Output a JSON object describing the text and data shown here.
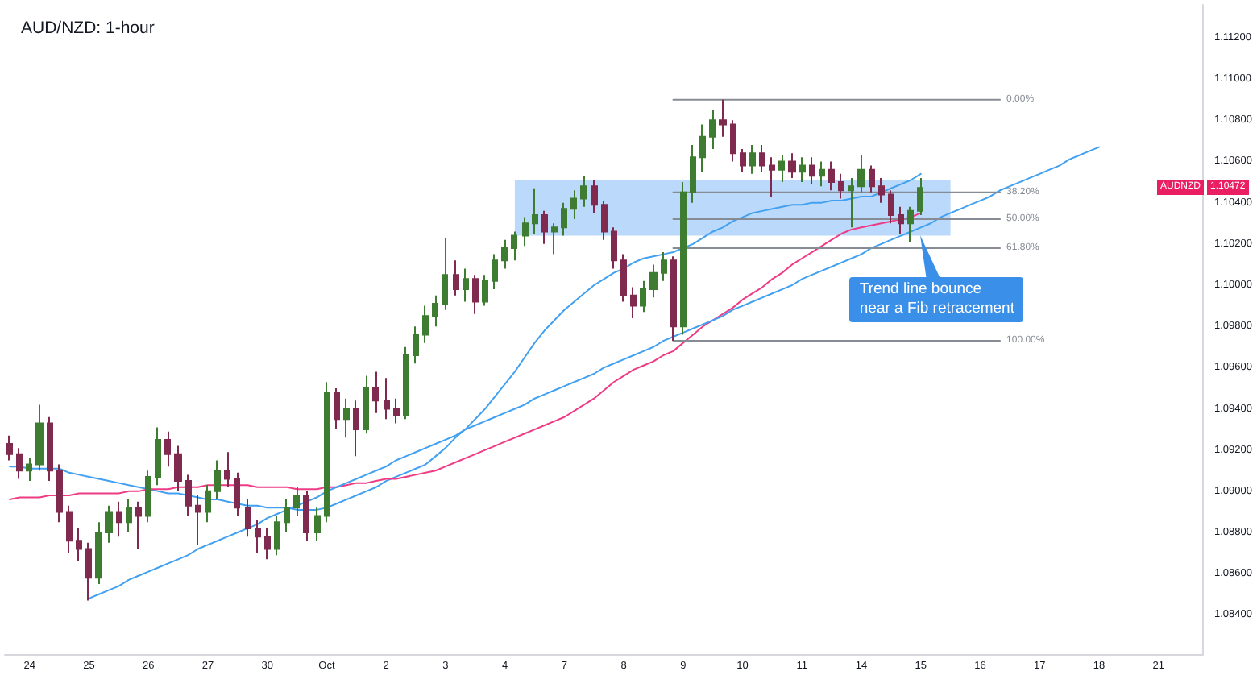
{
  "chart_data": {
    "type": "candlestick",
    "title": "AUD/NZD: 1-hour",
    "categories": [
      null,
      null,
      "24",
      null,
      null,
      null,
      null,
      null,
      "25",
      null,
      null,
      null,
      null,
      null,
      "26",
      null,
      null,
      null,
      null,
      null,
      "27",
      null,
      null,
      null,
      null,
      null,
      "30",
      null,
      null,
      null,
      null,
      null,
      "Oct",
      null,
      null,
      null,
      null,
      null,
      "2",
      null,
      null,
      null,
      null,
      null,
      "3",
      null,
      null,
      null,
      null,
      null,
      "4",
      null,
      null,
      null,
      null,
      null,
      "7",
      null,
      null,
      null,
      null,
      null,
      "8",
      null,
      null,
      null,
      null,
      null,
      "9",
      null,
      null,
      null,
      null,
      null,
      "10",
      null,
      null,
      null,
      null,
      null,
      "11",
      null,
      null,
      null,
      null,
      null,
      "14",
      null,
      null,
      null,
      null,
      null,
      "15",
      null,
      null,
      null,
      null,
      null,
      "16",
      null,
      null,
      null,
      null,
      null,
      "17",
      null,
      null,
      null,
      null,
      null,
      "18",
      null,
      null,
      null,
      null,
      null,
      "21",
      null,
      null,
      null,
      null
    ],
    "ohlc": [
      [
        1.0923,
        1.0927,
        1.0915,
        1.0918
      ],
      [
        1.0918,
        1.0921,
        1.0906,
        1.091
      ],
      [
        1.091,
        1.0916,
        1.0905,
        1.0913
      ],
      [
        1.0913,
        1.0942,
        1.091,
        1.0933
      ],
      [
        1.0933,
        1.0936,
        1.0905,
        1.091
      ],
      [
        1.091,
        1.0913,
        1.0885,
        1.089
      ],
      [
        1.089,
        1.0893,
        1.087,
        1.0876
      ],
      [
        1.0876,
        1.0882,
        1.0866,
        1.0872
      ],
      [
        1.0872,
        1.0875,
        1.0847,
        1.0858
      ],
      [
        1.0858,
        1.0885,
        1.0855,
        1.088
      ],
      [
        1.088,
        1.0893,
        1.0875,
        1.089
      ],
      [
        1.089,
        1.0895,
        1.0878,
        1.0885
      ],
      [
        1.0885,
        1.0896,
        1.088,
        1.0892
      ],
      [
        1.0892,
        1.0895,
        1.0872,
        1.0888
      ],
      [
        1.0888,
        1.091,
        1.0885,
        1.0907
      ],
      [
        1.0907,
        1.0931,
        1.0903,
        1.0925
      ],
      [
        1.0925,
        1.0929,
        1.0912,
        1.0918
      ],
      [
        1.0918,
        1.0922,
        1.09,
        1.0905
      ],
      [
        1.0905,
        1.0908,
        1.0888,
        1.0893
      ],
      [
        1.0893,
        1.0898,
        1.0874,
        1.089
      ],
      [
        1.089,
        1.0903,
        1.0885,
        1.09
      ],
      [
        1.09,
        1.0915,
        1.0896,
        1.091
      ],
      [
        1.091,
        1.0919,
        1.0902,
        1.0906
      ],
      [
        1.0906,
        1.0909,
        1.0888,
        1.0892
      ],
      [
        1.0892,
        1.0896,
        1.0878,
        1.0882
      ],
      [
        1.0882,
        1.0886,
        1.087,
        1.0878
      ],
      [
        1.0878,
        1.0882,
        1.0867,
        1.0872
      ],
      [
        1.0872,
        1.0888,
        1.0869,
        1.0885
      ],
      [
        1.0885,
        1.0896,
        1.088,
        1.0892
      ],
      [
        1.0892,
        1.0902,
        1.0888,
        1.0898
      ],
      [
        1.0898,
        1.09,
        1.0876,
        1.088
      ],
      [
        1.088,
        1.0892,
        1.0876,
        1.0888
      ],
      [
        1.0888,
        1.0953,
        1.0885,
        1.0948
      ],
      [
        1.0948,
        1.095,
        1.093,
        1.0935
      ],
      [
        1.0935,
        1.0945,
        1.0926,
        1.094
      ],
      [
        1.094,
        1.0944,
        1.0917,
        1.093
      ],
      [
        1.093,
        1.0956,
        1.0928,
        1.095
      ],
      [
        1.095,
        1.0958,
        1.0938,
        1.0944
      ],
      [
        1.0944,
        1.0955,
        1.0935,
        1.094
      ],
      [
        1.094,
        1.0945,
        1.0933,
        1.0937
      ],
      [
        1.0937,
        1.097,
        1.0935,
        1.0966
      ],
      [
        1.0966,
        1.098,
        1.0962,
        1.0976
      ],
      [
        1.0976,
        1.099,
        1.0972,
        1.0985
      ],
      [
        1.0985,
        1.0995,
        1.098,
        1.0991
      ],
      [
        1.0991,
        1.1023,
        1.0988,
        1.1005
      ],
      [
        1.1005,
        1.1012,
        1.0995,
        1.0998
      ],
      [
        1.0998,
        1.1008,
        1.0992,
        1.1003
      ],
      [
        1.1003,
        1.1005,
        1.0986,
        1.0992
      ],
      [
        1.0992,
        1.1005,
        1.099,
        1.1002
      ],
      [
        1.1002,
        1.1015,
        1.0998,
        1.1012
      ],
      [
        1.1012,
        1.1022,
        1.1008,
        1.1018
      ],
      [
        1.1018,
        1.1026,
        1.1012,
        1.1024
      ],
      [
        1.1024,
        1.1033,
        1.1019,
        1.103
      ],
      [
        1.103,
        1.1047,
        1.1025,
        1.1034
      ],
      [
        1.1034,
        1.1036,
        1.102,
        1.1026
      ],
      [
        1.1026,
        1.103,
        1.1015,
        1.1028
      ],
      [
        1.1028,
        1.104,
        1.1024,
        1.1037
      ],
      [
        1.1037,
        1.1046,
        1.1032,
        1.1042
      ],
      [
        1.1042,
        1.1053,
        1.1038,
        1.1048
      ],
      [
        1.1048,
        1.1051,
        1.1035,
        1.1039
      ],
      [
        1.1039,
        1.1041,
        1.1022,
        1.1026
      ],
      [
        1.1026,
        1.1028,
        1.1008,
        1.1012
      ],
      [
        1.1012,
        1.1015,
        1.0992,
        1.0995
      ],
      [
        1.0995,
        1.0999,
        1.0984,
        1.099
      ],
      [
        1.099,
        1.1002,
        1.0987,
        1.0998
      ],
      [
        1.0998,
        1.101,
        1.0994,
        1.1006
      ],
      [
        1.1006,
        1.1016,
        1.1002,
        1.1012
      ],
      [
        1.1012,
        1.1014,
        1.0973,
        1.098
      ],
      [
        1.098,
        1.105,
        1.0976,
        1.1045
      ],
      [
        1.1045,
        1.1068,
        1.104,
        1.1062
      ],
      [
        1.1062,
        1.1078,
        1.1055,
        1.1072
      ],
      [
        1.1072,
        1.1085,
        1.1066,
        1.108
      ],
      [
        1.108,
        1.109,
        1.1072,
        1.1078
      ],
      [
        1.1078,
        1.108,
        1.106,
        1.1064
      ],
      [
        1.1064,
        1.1066,
        1.1055,
        1.1058
      ],
      [
        1.1058,
        1.1068,
        1.1054,
        1.1064
      ],
      [
        1.1064,
        1.1068,
        1.1055,
        1.1058
      ],
      [
        1.1058,
        1.1062,
        1.1043,
        1.1056
      ],
      [
        1.1056,
        1.1063,
        1.105,
        1.106
      ],
      [
        1.106,
        1.1064,
        1.1052,
        1.1055
      ],
      [
        1.1055,
        1.1062,
        1.105,
        1.1058
      ],
      [
        1.1058,
        1.1062,
        1.1049,
        1.1053
      ],
      [
        1.1053,
        1.106,
        1.1048,
        1.1056
      ],
      [
        1.1056,
        1.106,
        1.1046,
        1.105
      ],
      [
        1.105,
        1.1054,
        1.1042,
        1.1046
      ],
      [
        1.1046,
        1.1052,
        1.1028,
        1.1048
      ],
      [
        1.1048,
        1.1063,
        1.1045,
        1.1056
      ],
      [
        1.1056,
        1.1058,
        1.1045,
        1.1048
      ],
      [
        1.1048,
        1.1052,
        1.104,
        1.1044
      ],
      [
        1.1044,
        1.1046,
        1.103,
        1.1034
      ],
      [
        1.1034,
        1.1038,
        1.1025,
        1.103
      ],
      [
        1.103,
        1.1038,
        1.1021,
        1.1036
      ],
      [
        1.1036,
        1.1052,
        1.1034,
        1.10472
      ],
      null,
      null,
      null,
      null,
      null,
      null,
      null,
      null,
      null,
      null,
      null,
      null,
      null,
      null,
      null,
      null,
      null,
      null,
      null,
      null,
      null,
      null,
      null,
      null,
      null,
      null,
      null,
      null
    ],
    "colors": [
      "#7f2a4e",
      "#7f2a4e",
      "#3e7c32",
      "#3e7c32",
      "#7f2a4e",
      "#7f2a4e",
      "#7f2a4e",
      "#7f2a4e",
      "#7f2a4e",
      "#3e7c32",
      "#3e7c32",
      "#7f2a4e",
      "#3e7c32",
      "#7f2a4e",
      "#3e7c32",
      "#3e7c32",
      "#7f2a4e",
      "#7f2a4e",
      "#7f2a4e",
      "#7f2a4e",
      "#3e7c32",
      "#3e7c32",
      "#7f2a4e",
      "#7f2a4e",
      "#7f2a4e",
      "#7f2a4e",
      "#7f2a4e",
      "#3e7c32",
      "#3e7c32",
      "#3e7c32",
      "#7f2a4e",
      "#3e7c32",
      "#3e7c32",
      "#7f2a4e",
      "#3e7c32",
      "#7f2a4e",
      "#3e7c32",
      "#7f2a4e",
      "#7f2a4e",
      "#7f2a4e",
      "#3e7c32",
      "#3e7c32",
      "#3e7c32",
      "#3e7c32",
      "#3e7c32",
      "#7f2a4e",
      "#3e7c32",
      "#7f2a4e",
      "#3e7c32",
      "#3e7c32",
      "#3e7c32",
      "#3e7c32",
      "#3e7c32",
      "#3e7c32",
      "#7f2a4e",
      "#3e7c32",
      "#3e7c32",
      "#3e7c32",
      "#3e7c32",
      "#7f2a4e",
      "#7f2a4e",
      "#7f2a4e",
      "#7f2a4e",
      "#7f2a4e",
      "#3e7c32",
      "#3e7c32",
      "#3e7c32",
      "#7f2a4e",
      "#3e7c32",
      "#3e7c32",
      "#3e7c32",
      "#3e7c32",
      "#7f2a4e",
      "#7f2a4e",
      "#7f2a4e",
      "#3e7c32",
      "#7f2a4e",
      "#7f2a4e",
      "#3e7c32",
      "#7f2a4e",
      "#3e7c32",
      "#7f2a4e",
      "#3e7c32",
      "#7f2a4e",
      "#7f2a4e",
      "#3e7c32",
      "#3e7c32",
      "#7f2a4e",
      "#7f2a4e",
      "#7f2a4e",
      "#7f2a4e",
      "#3e7c32",
      "#3e7c32",
      null,
      null,
      null,
      null,
      null,
      null,
      null,
      null,
      null,
      null,
      null,
      null,
      null,
      null,
      null,
      null,
      null,
      null,
      null,
      null,
      null,
      null,
      null,
      null,
      null,
      null,
      null,
      null
    ],
    "series": [
      {
        "type": "line",
        "color": "#bbd9fa",
        "values": [
          null,
          null,
          null,
          null,
          null,
          null,
          null,
          null,
          null,
          null,
          null,
          null,
          null,
          null,
          null,
          null,
          null,
          null,
          null,
          null,
          null,
          null,
          null,
          null,
          null,
          null,
          null,
          null,
          null,
          null,
          null,
          null,
          null,
          null,
          null,
          null,
          null,
          null,
          null,
          null,
          null,
          null,
          null,
          null,
          null,
          null,
          null,
          null,
          null,
          null,
          null,
          null,
          null,
          null,
          null,
          null,
          null,
          null,
          null,
          null,
          null,
          null,
          null,
          null,
          null,
          null,
          null,
          null,
          null,
          null,
          null,
          null,
          null,
          null,
          null,
          null,
          null,
          null,
          null,
          null,
          null,
          null,
          null,
          null,
          null,
          null,
          null,
          null,
          null,
          null,
          null,
          null,
          null,
          null,
          null,
          null,
          null,
          null,
          null,
          null,
          null,
          null,
          null,
          null,
          null,
          null,
          null,
          null,
          null,
          null,
          null,
          null,
          null,
          null,
          null,
          null,
          null,
          null,
          null,
          null,
          null
        ],
        "upper": [
          null,
          null,
          null,
          null,
          null,
          null,
          null,
          null,
          null,
          null,
          null,
          null,
          null,
          null,
          null,
          null,
          null,
          null,
          null,
          null,
          null,
          null,
          null,
          null,
          null,
          null,
          null,
          null,
          null,
          null,
          null,
          null,
          null,
          null,
          null,
          null,
          null,
          null,
          null,
          null,
          null,
          null,
          null,
          null,
          null,
          null,
          null,
          null,
          null,
          null,
          null,
          1.1051,
          1.1051,
          1.1051,
          1.1051,
          1.1051,
          1.1051,
          1.1051,
          1.1051,
          1.1051,
          1.1051,
          1.1051,
          1.1051,
          1.1051,
          1.1051,
          1.1051,
          1.1051,
          1.1051,
          1.1051,
          1.1051,
          1.1051,
          1.1051,
          1.1051,
          1.1051,
          1.1051,
          1.1051,
          1.1051,
          1.1051,
          1.1051,
          1.1051,
          1.1051,
          1.1051,
          1.1051,
          1.1051,
          1.1051,
          1.1051,
          1.1051,
          1.1051,
          1.1051,
          1.1051,
          1.1051,
          1.1051,
          1.1051,
          1.1051,
          1.1051,
          1.1051,
          null,
          null,
          null,
          null,
          null,
          null,
          null,
          null,
          null,
          null,
          null,
          null,
          null,
          null,
          null,
          null,
          null,
          null,
          null,
          null,
          null,
          null,
          null,
          null,
          null
        ],
        "lower": [
          null,
          null,
          null,
          null,
          null,
          null,
          null,
          null,
          null,
          null,
          null,
          null,
          null,
          null,
          null,
          null,
          null,
          null,
          null,
          null,
          null,
          null,
          null,
          null,
          null,
          null,
          null,
          null,
          null,
          null,
          null,
          null,
          null,
          null,
          null,
          null,
          null,
          null,
          null,
          null,
          null,
          null,
          null,
          null,
          null,
          null,
          null,
          null,
          null,
          null,
          null,
          1.1024,
          1.1024,
          1.1024,
          1.1024,
          1.1024,
          1.1024,
          1.1024,
          1.1024,
          1.1024,
          1.1024,
          1.1024,
          1.1024,
          1.1024,
          1.1024,
          1.1024,
          1.1024,
          1.1024,
          1.1024,
          1.1024,
          1.1024,
          1.1024,
          1.1024,
          1.1024,
          1.1024,
          1.1024,
          1.1024,
          1.1024,
          1.1024,
          1.1024,
          1.1024,
          1.1024,
          1.1024,
          1.1024,
          1.1024,
          1.1024,
          1.1024,
          1.1024,
          1.1024,
          1.1024,
          1.1024,
          1.1024,
          1.1024,
          1.1024,
          1.1024,
          1.1024,
          null,
          null,
          null,
          null,
          null,
          null,
          null,
          null,
          null,
          null,
          null,
          null,
          null,
          null,
          null,
          null,
          null,
          null,
          null,
          null,
          null,
          null,
          null,
          null,
          null
        ]
      },
      {
        "type": "line",
        "color": "#42a0f0",
        "values": [
          1.0912,
          1.0912,
          1.0911,
          1.0911,
          1.0911,
          1.0911,
          1.0909,
          1.0908,
          1.0907,
          1.0906,
          1.0905,
          1.0904,
          1.0903,
          1.0902,
          1.0901,
          1.09,
          1.0899,
          1.0899,
          1.0898,
          1.0897,
          1.0896,
          1.0896,
          1.0895,
          1.0894,
          1.0893,
          1.0893,
          1.0892,
          1.0892,
          1.0892,
          1.0891,
          1.0891,
          1.0891,
          1.0892,
          1.0894,
          1.0896,
          1.0898,
          1.09,
          1.0902,
          1.0905,
          1.0907,
          1.0909,
          1.0911,
          1.0913,
          1.0917,
          1.0921,
          1.0926,
          1.093,
          1.0935,
          1.094,
          1.0946,
          1.0952,
          1.0958,
          1.0965,
          1.0972,
          1.0978,
          1.0983,
          1.0988,
          1.0992,
          1.0996,
          1.1,
          1.1003,
          1.1006,
          1.1008,
          1.1011,
          1.1013,
          1.1014,
          1.1015,
          1.1016,
          1.1018,
          1.102,
          1.1023,
          1.1026,
          1.1028,
          1.1031,
          1.1033,
          1.1035,
          1.1036,
          1.1037,
          1.1038,
          1.1039,
          1.1039,
          1.104,
          1.104,
          1.1041,
          1.1041,
          1.1042,
          1.1043,
          1.1043,
          1.1045,
          1.1047,
          1.1049,
          1.1051,
          1.1054,
          null,
          null,
          null,
          null,
          null,
          null,
          null,
          null,
          null,
          null,
          null,
          null,
          null,
          null,
          null,
          null,
          null,
          null,
          null,
          null,
          null,
          null,
          null,
          null,
          null,
          null,
          null,
          null
        ]
      },
      {
        "type": "line",
        "color": "#ee3b84",
        "values": [
          1.0896,
          1.0897,
          1.0897,
          1.0897,
          1.0898,
          1.0898,
          1.0898,
          1.0899,
          1.0899,
          1.0899,
          1.0899,
          1.0899,
          1.09,
          1.09,
          1.0901,
          1.0901,
          1.0901,
          1.0902,
          1.0902,
          1.0902,
          1.0903,
          1.0903,
          1.0903,
          1.0903,
          1.0903,
          1.0902,
          1.0902,
          1.0902,
          1.0902,
          1.0901,
          1.0901,
          1.0901,
          1.0902,
          1.0902,
          1.0903,
          1.0904,
          1.0904,
          1.0905,
          1.0906,
          1.0906,
          1.0907,
          1.0908,
          1.0909,
          1.091,
          1.0912,
          1.0914,
          1.0916,
          1.0918,
          1.092,
          1.0922,
          1.0924,
          1.0926,
          1.0928,
          1.093,
          1.0932,
          1.0934,
          1.0936,
          1.0939,
          1.0942,
          1.0945,
          1.0949,
          1.0953,
          1.0956,
          1.0959,
          1.0961,
          1.0963,
          1.0966,
          1.0968,
          1.0972,
          1.0976,
          1.098,
          1.0983,
          1.0986,
          1.0989,
          1.0993,
          1.0996,
          1.0999,
          1.1003,
          1.1006,
          1.101,
          1.1013,
          1.1016,
          1.1019,
          1.1022,
          1.1025,
          1.1027,
          1.1028,
          1.1029,
          1.103,
          1.1031,
          1.1032,
          1.1033,
          1.1035,
          null,
          null,
          null,
          null,
          null,
          null,
          null,
          null,
          null,
          null,
          null,
          null,
          null,
          null,
          null,
          null,
          null,
          null,
          null,
          null,
          null,
          null,
          null,
          null,
          null,
          null,
          null,
          null
        ]
      },
      {
        "type": "line",
        "color": "#42a0f0",
        "values": [
          null,
          null,
          null,
          null,
          null,
          null,
          null,
          null,
          1.0848,
          1.085,
          1.0852,
          1.0854,
          1.0857,
          1.0859,
          1.0861,
          1.0863,
          1.0865,
          1.0867,
          1.0869,
          1.0872,
          1.0874,
          1.0876,
          1.0878,
          1.088,
          1.0882,
          1.0884,
          1.0887,
          1.0889,
          1.0891,
          1.0893,
          1.0895,
          1.0897,
          1.09,
          1.0902,
          1.0904,
          1.0906,
          1.0908,
          1.091,
          1.0912,
          1.0915,
          1.0917,
          1.0919,
          1.0921,
          1.0923,
          1.0925,
          1.0927,
          1.093,
          1.0932,
          1.0934,
          1.0936,
          1.0938,
          1.094,
          1.0942,
          1.0945,
          1.0947,
          1.0949,
          1.0951,
          1.0953,
          1.0955,
          1.0957,
          1.096,
          1.0962,
          1.0964,
          1.0966,
          1.0968,
          1.097,
          1.0973,
          1.0975,
          1.0977,
          1.0979,
          1.0981,
          1.0983,
          1.0985,
          1.0988,
          1.099,
          1.0992,
          1.0994,
          1.0996,
          1.0998,
          1.1,
          1.1003,
          1.1005,
          1.1007,
          1.1009,
          1.1011,
          1.1013,
          1.1015,
          1.1018,
          1.102,
          1.1022,
          1.1024,
          1.1026,
          1.1028,
          1.103,
          1.1033,
          1.1035,
          1.1037,
          1.1039,
          1.1041,
          1.1043,
          1.1046,
          1.1048,
          1.105,
          1.1052,
          1.1054,
          1.1056,
          1.1058,
          1.1061,
          1.1063,
          1.1065,
          1.1067,
          null,
          null,
          null,
          null,
          null,
          null,
          null,
          null,
          null,
          null
        ]
      },
      {
        "type": "line",
        "name": "0.00%",
        "color": "#878b94",
        "values": [
          null,
          null,
          null,
          null,
          null,
          null,
          null,
          null,
          null,
          null,
          null,
          null,
          null,
          null,
          null,
          null,
          null,
          null,
          null,
          null,
          null,
          null,
          null,
          null,
          null,
          null,
          null,
          null,
          null,
          null,
          null,
          null,
          null,
          null,
          null,
          null,
          null,
          null,
          null,
          null,
          null,
          null,
          null,
          null,
          null,
          null,
          null,
          null,
          null,
          null,
          null,
          null,
          null,
          null,
          null,
          null,
          null,
          null,
          null,
          null,
          null,
          null,
          null,
          null,
          null,
          null,
          null,
          1.109,
          1.109,
          1.109,
          1.109,
          1.109,
          1.109,
          1.109,
          1.109,
          1.109,
          1.109,
          1.109,
          1.109,
          1.109,
          1.109,
          1.109,
          1.109,
          1.109,
          1.109,
          1.109,
          1.109,
          1.109,
          1.109,
          1.109,
          1.109,
          1.109,
          1.109,
          1.109,
          1.109,
          1.109,
          1.109,
          1.109,
          1.109,
          1.109,
          1.109,
          null,
          null,
          null,
          null,
          null,
          null,
          null,
          null,
          null,
          null,
          null,
          null,
          null,
          null,
          null,
          null,
          null,
          null,
          null,
          null
        ]
      },
      {
        "type": "line",
        "name": "38.20%",
        "color": "#878b94",
        "values": [
          null,
          null,
          null,
          null,
          null,
          null,
          null,
          null,
          null,
          null,
          null,
          null,
          null,
          null,
          null,
          null,
          null,
          null,
          null,
          null,
          null,
          null,
          null,
          null,
          null,
          null,
          null,
          null,
          null,
          null,
          null,
          null,
          null,
          null,
          null,
          null,
          null,
          null,
          null,
          null,
          null,
          null,
          null,
          null,
          null,
          null,
          null,
          null,
          null,
          null,
          null,
          null,
          null,
          null,
          null,
          null,
          null,
          null,
          null,
          null,
          null,
          null,
          null,
          null,
          null,
          null,
          null,
          1.1045,
          1.1045,
          1.1045,
          1.1045,
          1.1045,
          1.1045,
          1.1045,
          1.1045,
          1.1045,
          1.1045,
          1.1045,
          1.1045,
          1.1045,
          1.1045,
          1.1045,
          1.1045,
          1.1045,
          1.1045,
          1.1045,
          1.1045,
          1.1045,
          1.1045,
          1.1045,
          1.1045,
          1.1045,
          1.1045,
          1.1045,
          1.1045,
          1.1045,
          1.1045,
          1.1045,
          1.1045,
          1.1045,
          1.1045,
          null,
          null,
          null,
          null,
          null,
          null,
          null,
          null,
          null,
          null,
          null,
          null,
          null,
          null,
          null,
          null,
          null,
          null,
          null,
          null
        ]
      },
      {
        "type": "line",
        "name": "50.00%",
        "color": "#878b94",
        "values": [
          null,
          null,
          null,
          null,
          null,
          null,
          null,
          null,
          null,
          null,
          null,
          null,
          null,
          null,
          null,
          null,
          null,
          null,
          null,
          null,
          null,
          null,
          null,
          null,
          null,
          null,
          null,
          null,
          null,
          null,
          null,
          null,
          null,
          null,
          null,
          null,
          null,
          null,
          null,
          null,
          null,
          null,
          null,
          null,
          null,
          null,
          null,
          null,
          null,
          null,
          null,
          null,
          null,
          null,
          null,
          null,
          null,
          null,
          null,
          null,
          null,
          null,
          null,
          null,
          null,
          null,
          null,
          1.1032,
          1.1032,
          1.1032,
          1.1032,
          1.1032,
          1.1032,
          1.1032,
          1.1032,
          1.1032,
          1.1032,
          1.1032,
          1.1032,
          1.1032,
          1.1032,
          1.1032,
          1.1032,
          1.1032,
          1.1032,
          1.1032,
          1.1032,
          1.1032,
          1.1032,
          1.1032,
          1.1032,
          1.1032,
          1.1032,
          1.1032,
          1.1032,
          1.1032,
          1.1032,
          1.1032,
          1.1032,
          1.1032,
          1.1032,
          null,
          null,
          null,
          null,
          null,
          null,
          null,
          null,
          null,
          null,
          null,
          null,
          null,
          null,
          null,
          null,
          null,
          null,
          null,
          null
        ]
      },
      {
        "type": "line",
        "name": "61.80%",
        "color": "#878b94",
        "values": [
          null,
          null,
          null,
          null,
          null,
          null,
          null,
          null,
          null,
          null,
          null,
          null,
          null,
          null,
          null,
          null,
          null,
          null,
          null,
          null,
          null,
          null,
          null,
          null,
          null,
          null,
          null,
          null,
          null,
          null,
          null,
          null,
          null,
          null,
          null,
          null,
          null,
          null,
          null,
          null,
          null,
          null,
          null,
          null,
          null,
          null,
          null,
          null,
          null,
          null,
          null,
          null,
          null,
          null,
          null,
          null,
          null,
          null,
          null,
          null,
          null,
          null,
          null,
          null,
          null,
          null,
          null,
          1.1018,
          1.1018,
          1.1018,
          1.1018,
          1.1018,
          1.1018,
          1.1018,
          1.1018,
          1.1018,
          1.1018,
          1.1018,
          1.1018,
          1.1018,
          1.1018,
          1.1018,
          1.1018,
          1.1018,
          1.1018,
          1.1018,
          1.1018,
          1.1018,
          1.1018,
          1.1018,
          1.1018,
          1.1018,
          1.1018,
          1.1018,
          1.1018,
          1.1018,
          1.1018,
          1.1018,
          1.1018,
          1.1018,
          1.1018,
          null,
          null,
          null,
          null,
          null,
          null,
          null,
          null,
          null,
          null,
          null,
          null,
          null,
          null,
          null,
          null,
          null,
          null,
          null,
          null
        ]
      },
      {
        "type": "line",
        "name": "100.00%",
        "color": "#878b94",
        "values": [
          null,
          null,
          null,
          null,
          null,
          null,
          null,
          null,
          null,
          null,
          null,
          null,
          null,
          null,
          null,
          null,
          null,
          null,
          null,
          null,
          null,
          null,
          null,
          null,
          null,
          null,
          null,
          null,
          null,
          null,
          null,
          null,
          null,
          null,
          null,
          null,
          null,
          null,
          null,
          null,
          null,
          null,
          null,
          null,
          null,
          null,
          null,
          null,
          null,
          null,
          null,
          null,
          null,
          null,
          null,
          null,
          null,
          null,
          null,
          null,
          null,
          null,
          null,
          null,
          null,
          null,
          null,
          1.0973,
          1.0973,
          1.0973,
          1.0973,
          1.0973,
          1.0973,
          1.0973,
          1.0973,
          1.0973,
          1.0973,
          1.0973,
          1.0973,
          1.0973,
          1.0973,
          1.0973,
          1.0973,
          1.0973,
          1.0973,
          1.0973,
          1.0973,
          1.0973,
          1.0973,
          1.0973,
          1.0973,
          1.0973,
          1.0973,
          1.0973,
          1.0973,
          1.0973,
          1.0973,
          1.0973,
          1.0973,
          1.0973,
          1.0973,
          null,
          null,
          null,
          null,
          null,
          null,
          null,
          null,
          null,
          null,
          null,
          null,
          null,
          null,
          null,
          null,
          null,
          null,
          null,
          null
        ]
      }
    ],
    "ylim": [
      1.0821,
      1.1136
    ],
    "yticks": [
      {
        "value": 1.084,
        "label": "1.08400"
      },
      {
        "value": 1.086,
        "label": "1.08600"
      },
      {
        "value": 1.088,
        "label": "1.08800"
      },
      {
        "value": 1.09,
        "label": "1.09000"
      },
      {
        "value": 1.092,
        "label": "1.09200"
      },
      {
        "value": 1.094,
        "label": "1.09400"
      },
      {
        "value": 1.096,
        "label": "1.09600"
      },
      {
        "value": 1.098,
        "label": "1.09800"
      },
      {
        "value": 1.1,
        "label": "1.10000"
      },
      {
        "value": 1.102,
        "label": "1.10200"
      },
      {
        "value": 1.104,
        "label": "1.10400"
      },
      {
        "value": 1.106,
        "label": "1.10600"
      },
      {
        "value": 1.108,
        "label": "1.10800"
      },
      {
        "value": 1.11,
        "label": "1.11000"
      },
      {
        "value": 1.112,
        "label": "1.11200"
      }
    ],
    "marker": "none",
    "annotations": [
      {
        "text": "Trend line bounce\nnear a Fib retracement",
        "x": "15",
        "y": 1.1024
      },
      {
        "text": "AUDNZD",
        "y": 1.10472
      },
      {
        "text": "1.10472",
        "y": 1.10472
      }
    ]
  }
}
